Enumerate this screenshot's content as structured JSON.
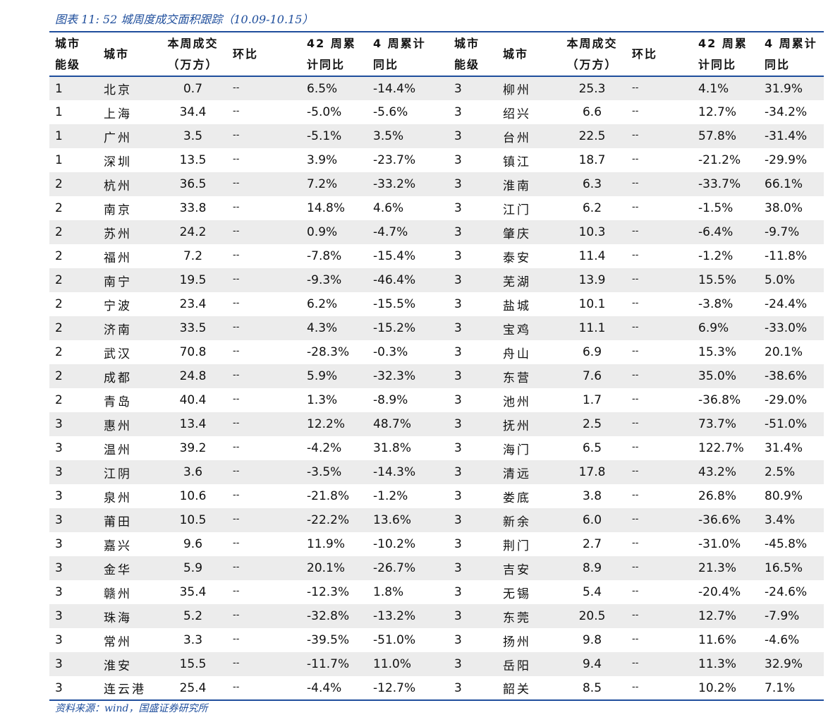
{
  "title": "图表 11:  52 城周度成交面积跟踪（10.09-10.15）",
  "headers": {
    "tier_l1": "城市",
    "tier_l2": "能级",
    "city": "城市",
    "vol_l1": "本周成交",
    "vol_l2": "（万方）",
    "wow": "环比",
    "yoy42_l1": "42 周累",
    "yoy42_l2": "计同比",
    "yoy4_l1": "4 周累计",
    "yoy4_l2": "同比"
  },
  "rows": [
    {
      "l": [
        "1",
        "北京",
        "0.7",
        "--",
        "6.5%",
        "-14.4%"
      ],
      "r": [
        "3",
        "柳州",
        "25.3",
        "--",
        "4.1%",
        "31.9%"
      ]
    },
    {
      "l": [
        "1",
        "上海",
        "34.4",
        "--",
        "-5.0%",
        "-5.6%"
      ],
      "r": [
        "3",
        "绍兴",
        "6.6",
        "--",
        "12.7%",
        "-34.2%"
      ]
    },
    {
      "l": [
        "1",
        "广州",
        "3.5",
        "--",
        "-5.1%",
        "3.5%"
      ],
      "r": [
        "3",
        "台州",
        "22.5",
        "--",
        "57.8%",
        "-31.4%"
      ]
    },
    {
      "l": [
        "1",
        "深圳",
        "13.5",
        "--",
        "3.9%",
        "-23.7%"
      ],
      "r": [
        "3",
        "镇江",
        "18.7",
        "--",
        "-21.2%",
        "-29.9%"
      ]
    },
    {
      "l": [
        "2",
        "杭州",
        "36.5",
        "--",
        "7.2%",
        "-33.2%"
      ],
      "r": [
        "3",
        "淮南",
        "6.3",
        "--",
        "-33.7%",
        "66.1%"
      ]
    },
    {
      "l": [
        "2",
        "南京",
        "33.8",
        "--",
        "14.8%",
        "4.6%"
      ],
      "r": [
        "3",
        "江门",
        "6.2",
        "--",
        "-1.5%",
        "38.0%"
      ]
    },
    {
      "l": [
        "2",
        "苏州",
        "24.2",
        "--",
        "0.9%",
        "-4.7%"
      ],
      "r": [
        "3",
        "肇庆",
        "10.3",
        "--",
        "-6.4%",
        "-9.7%"
      ]
    },
    {
      "l": [
        "2",
        "福州",
        "7.2",
        "--",
        "-7.8%",
        "-15.4%"
      ],
      "r": [
        "3",
        "泰安",
        "11.4",
        "--",
        "-1.2%",
        "-11.8%"
      ]
    },
    {
      "l": [
        "2",
        "南宁",
        "19.5",
        "--",
        "-9.3%",
        "-46.4%"
      ],
      "r": [
        "3",
        "芜湖",
        "13.9",
        "--",
        "15.5%",
        "5.0%"
      ]
    },
    {
      "l": [
        "2",
        "宁波",
        "23.4",
        "--",
        "6.2%",
        "-15.5%"
      ],
      "r": [
        "3",
        "盐城",
        "10.1",
        "--",
        "-3.8%",
        "-24.4%"
      ]
    },
    {
      "l": [
        "2",
        "济南",
        "33.5",
        "--",
        "4.3%",
        "-15.2%"
      ],
      "r": [
        "3",
        "宝鸡",
        "11.1",
        "--",
        "6.9%",
        "-33.0%"
      ]
    },
    {
      "l": [
        "2",
        "武汉",
        "70.8",
        "--",
        "-28.3%",
        "-0.3%"
      ],
      "r": [
        "3",
        "舟山",
        "6.9",
        "--",
        "15.3%",
        "20.1%"
      ]
    },
    {
      "l": [
        "2",
        "成都",
        "24.8",
        "--",
        "5.9%",
        "-32.3%"
      ],
      "r": [
        "3",
        "东营",
        "7.6",
        "--",
        "35.0%",
        "-38.6%"
      ]
    },
    {
      "l": [
        "2",
        "青岛",
        "40.4",
        "--",
        "1.3%",
        "-8.9%"
      ],
      "r": [
        "3",
        "池州",
        "1.7",
        "--",
        "-36.8%",
        "-29.0%"
      ]
    },
    {
      "l": [
        "3",
        "惠州",
        "13.4",
        "--",
        "12.2%",
        "48.7%"
      ],
      "r": [
        "3",
        "抚州",
        "2.5",
        "--",
        "73.7%",
        "-51.0%"
      ]
    },
    {
      "l": [
        "3",
        "温州",
        "39.2",
        "--",
        "-4.2%",
        "31.8%"
      ],
      "r": [
        "3",
        "海门",
        "6.5",
        "--",
        "122.7%",
        "31.4%"
      ]
    },
    {
      "l": [
        "3",
        "江阴",
        "3.6",
        "--",
        "-3.5%",
        "-14.3%"
      ],
      "r": [
        "3",
        "清远",
        "17.8",
        "--",
        "43.2%",
        "2.5%"
      ]
    },
    {
      "l": [
        "3",
        "泉州",
        "10.6",
        "--",
        "-21.8%",
        "-1.2%"
      ],
      "r": [
        "3",
        "娄底",
        "3.8",
        "--",
        "26.8%",
        "80.9%"
      ]
    },
    {
      "l": [
        "3",
        "莆田",
        "10.5",
        "--",
        "-22.2%",
        "13.6%"
      ],
      "r": [
        "3",
        "新余",
        "6.0",
        "--",
        "-36.6%",
        "3.4%"
      ]
    },
    {
      "l": [
        "3",
        "嘉兴",
        "9.6",
        "--",
        "11.9%",
        "-10.2%"
      ],
      "r": [
        "3",
        "荆门",
        "2.7",
        "--",
        "-31.0%",
        "-45.8%"
      ]
    },
    {
      "l": [
        "3",
        "金华",
        "5.9",
        "--",
        "20.1%",
        "-26.7%"
      ],
      "r": [
        "3",
        "吉安",
        "8.9",
        "--",
        "21.3%",
        "16.5%"
      ]
    },
    {
      "l": [
        "3",
        "赣州",
        "35.4",
        "--",
        "-12.3%",
        "1.8%"
      ],
      "r": [
        "3",
        "无锡",
        "5.4",
        "--",
        "-20.4%",
        "-24.6%"
      ]
    },
    {
      "l": [
        "3",
        "珠海",
        "5.2",
        "--",
        "-32.8%",
        "-13.2%"
      ],
      "r": [
        "3",
        "东莞",
        "20.5",
        "--",
        "12.7%",
        "-7.9%"
      ]
    },
    {
      "l": [
        "3",
        "常州",
        "3.3",
        "--",
        "-39.5%",
        "-51.0%"
      ],
      "r": [
        "3",
        "扬州",
        "9.8",
        "--",
        "11.6%",
        "-4.6%"
      ]
    },
    {
      "l": [
        "3",
        "淮安",
        "15.5",
        "--",
        "-11.7%",
        "11.0%"
      ],
      "r": [
        "3",
        "岳阳",
        "9.4",
        "--",
        "11.3%",
        "32.9%"
      ]
    },
    {
      "l": [
        "3",
        "连云港",
        "25.4",
        "--",
        "-4.4%",
        "-12.7%"
      ],
      "r": [
        "3",
        "韶关",
        "8.5",
        "--",
        "10.2%",
        "7.1%"
      ]
    }
  ],
  "source": "资料来源：wind，国盛证券研究所"
}
